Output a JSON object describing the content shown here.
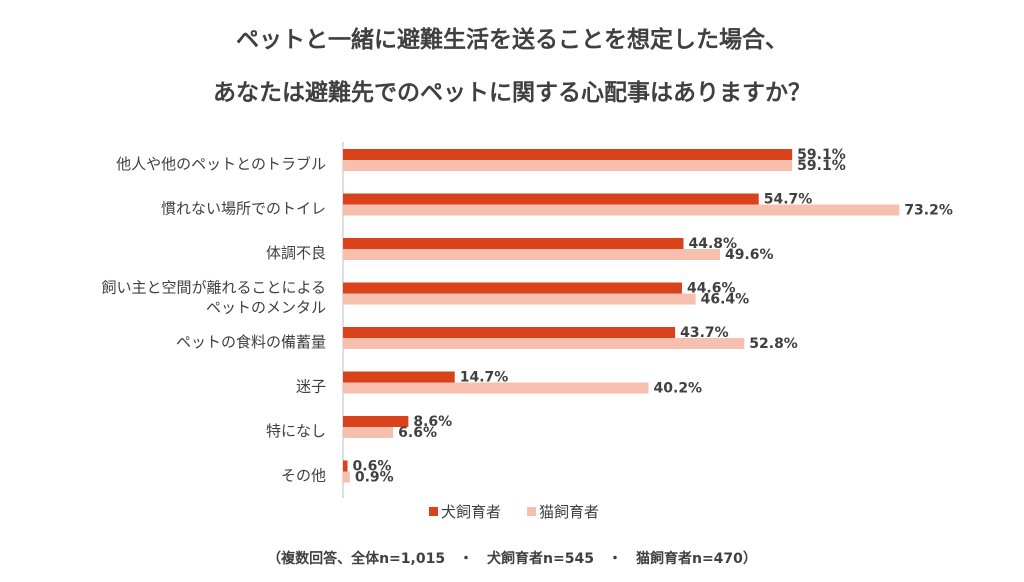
{
  "title_line1": "ペットと一緒に避難生活を送ることを想定した場合、",
  "title_line2": "あなたは避難先でのペットに関する心配事はありますか？",
  "footnote": "（複数回答、全体n=1,015　・　犬飼育者n=545　・　猫飼育者n=470）",
  "colors": {
    "dog": "#d9421a",
    "cat": "#f6bfae",
    "axis": "#bfbfbf",
    "text": "#404040"
  },
  "chart_data": {
    "type": "bar",
    "orientation": "horizontal",
    "categories": [
      [
        "他人や他のペットとのトラブル"
      ],
      [
        "慣れない場所でのトイレ"
      ],
      [
        "体調不良"
      ],
      [
        "飼い主と空間が離れることによる",
        "ペットのメンタル"
      ],
      [
        "ペットの食料の備蓄量"
      ],
      [
        "迷子"
      ],
      [
        "特になし"
      ],
      [
        "その他"
      ]
    ],
    "series": [
      {
        "name": "犬飼育者",
        "values": [
          59.1,
          54.7,
          44.8,
          44.6,
          43.7,
          14.7,
          8.6,
          0.6
        ],
        "labels": [
          "59.1%",
          "54.7%",
          "44.8%",
          "44.6%",
          "43.7%",
          "14.7%",
          "8.6%",
          "0.6%"
        ]
      },
      {
        "name": "猫飼育者",
        "values": [
          59.1,
          73.2,
          49.6,
          46.4,
          52.8,
          40.2,
          6.6,
          0.9
        ],
        "labels": [
          "59.1%",
          "73.2%",
          "49.6%",
          "46.4%",
          "52.8%",
          "40.2%",
          "6.6%",
          "0.9%"
        ]
      }
    ],
    "legend_position": "bottom",
    "grid": false
  }
}
